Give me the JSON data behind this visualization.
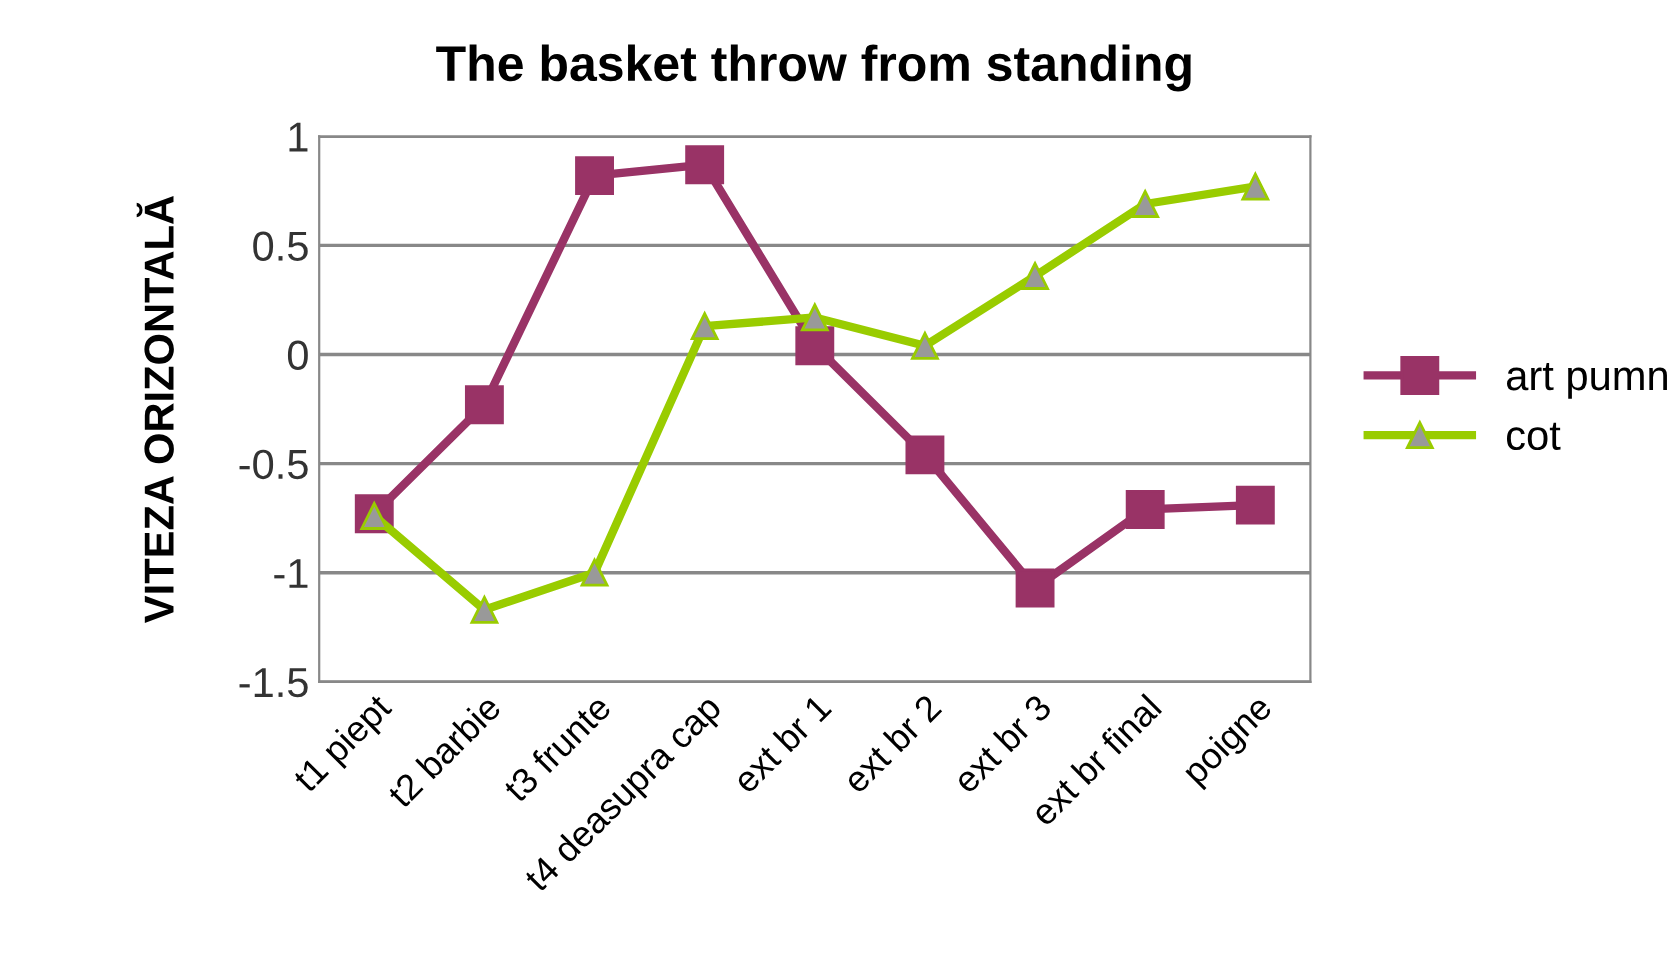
{
  "chart_data": {
    "type": "line",
    "title": "The basket throw from standing",
    "ylabel": "VITEZA ORIZONTALĂ",
    "categories": [
      "t1 piept",
      "t2 barbie",
      "t3 frunte",
      "t4 deasupra cap",
      "ext br 1",
      "ext br 2",
      "ext br 3",
      "ext br final",
      "poigne"
    ],
    "series": [
      {
        "name": "art pumn",
        "color": "#993366",
        "marker": "square",
        "values": [
          -0.73,
          -0.23,
          0.82,
          0.87,
          0.04,
          -0.46,
          -1.07,
          -0.71,
          -0.69
        ]
      },
      {
        "name": "cot",
        "color": "#99cc00",
        "marker": "triangle",
        "values": [
          -0.74,
          -1.17,
          -1.0,
          0.13,
          0.17,
          0.04,
          0.36,
          0.69,
          0.77
        ]
      }
    ],
    "ylim": [
      -1.5,
      1
    ],
    "yticks": [
      -1.5,
      -1,
      -0.5,
      0,
      0.5,
      1
    ],
    "grid": "y",
    "legend": "right"
  }
}
